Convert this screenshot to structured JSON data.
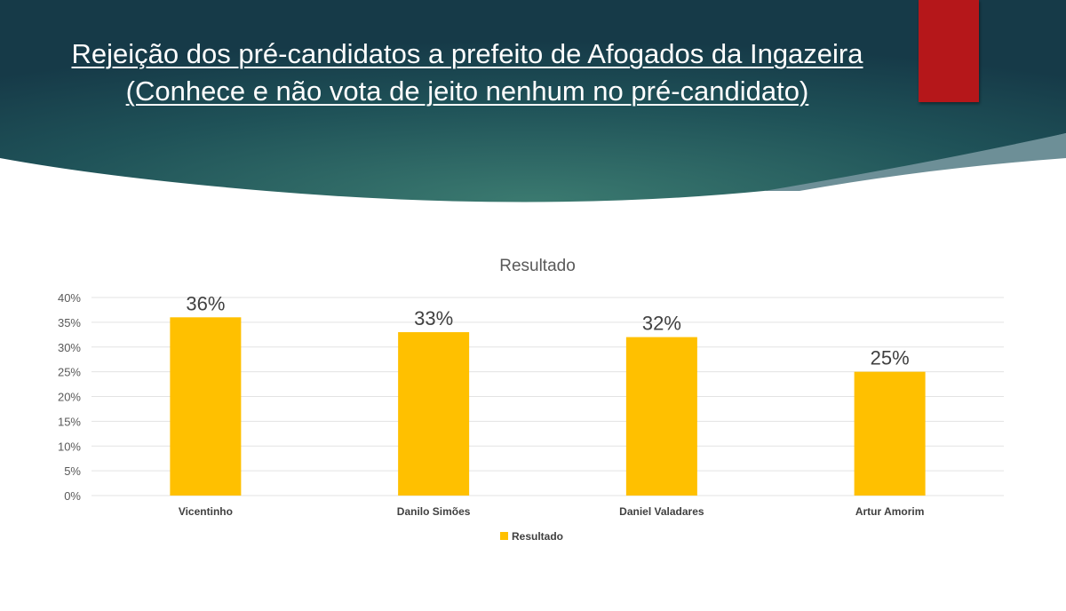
{
  "slide": {
    "title": "Rejeição dos pré-candidatos a prefeito de Afogados da Ingazeira (Conhece e não vota de jeito nenhum no pré-candidato)",
    "colors": {
      "header": "#1c4a52",
      "accent": "#b5171a",
      "bar": "#ffc000"
    }
  },
  "chart_data": {
    "type": "bar",
    "title": "Resultado",
    "categories": [
      "Vicentinho",
      "Danilo Simões",
      "Daniel Valadares",
      "Artur Amorim"
    ],
    "series": [
      {
        "name": "Resultado",
        "values": [
          36,
          33,
          32,
          25
        ]
      }
    ],
    "data_labels": [
      "36%",
      "33%",
      "32%",
      "25%"
    ],
    "ylim": [
      0,
      40
    ],
    "yticks": [
      "0%",
      "5%",
      "10%",
      "15%",
      "20%",
      "25%",
      "30%",
      "35%",
      "40%"
    ],
    "grid": true,
    "legend": "bottom"
  }
}
